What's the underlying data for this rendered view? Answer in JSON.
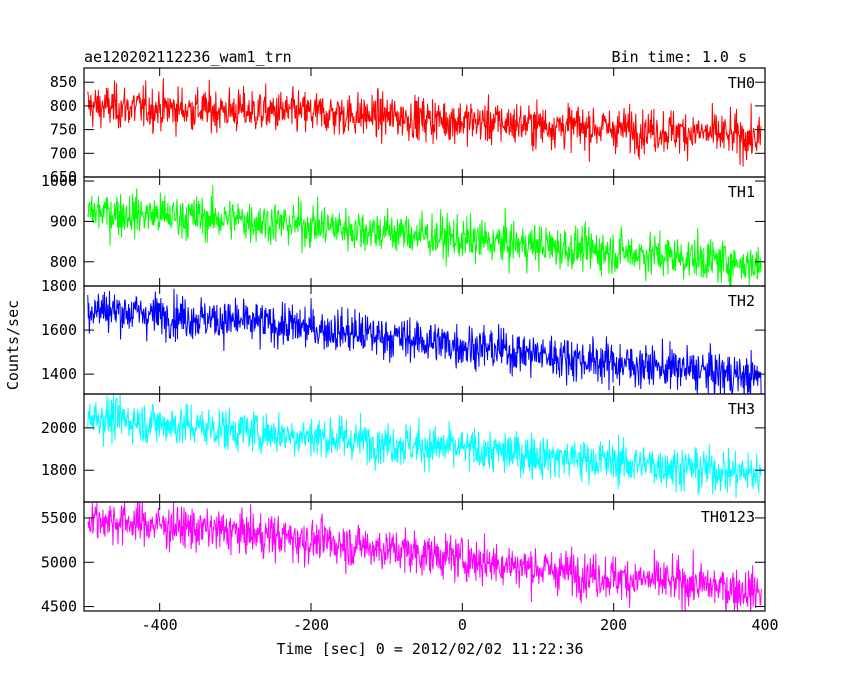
{
  "header": {
    "title": "ae120202112236_wam1_trn",
    "bin_time": "Bin time: 1.0 s"
  },
  "chart_data": {
    "type": "line",
    "title": "ae120202112236_wam1_trn",
    "subtitle": "Bin time: 1.0 s",
    "xlabel": "Time [sec] 0 = 2012/02/02 11:22:36",
    "ylabel": "Counts/sec",
    "xlim": [
      -500,
      400
    ],
    "x_ticks": [
      -400,
      -200,
      0,
      200,
      400
    ],
    "grid": false,
    "series": [
      {
        "name": "TH0",
        "color": "#ff0000",
        "ylim": [
          650,
          880
        ],
        "y_ticks": [
          650,
          700,
          750,
          800,
          850
        ],
        "x": [
          -500,
          -400,
          -300,
          -200,
          -100,
          0,
          100,
          200,
          300,
          400
        ],
        "values": [
          800,
          795,
          790,
          785,
          778,
          768,
          760,
          752,
          745,
          730
        ]
      },
      {
        "name": "TH1",
        "color": "#00ff00",
        "ylim": [
          740,
          1010
        ],
        "y_ticks": [
          800,
          900,
          1000
        ],
        "x": [
          -500,
          -400,
          -300,
          -200,
          -100,
          0,
          100,
          200,
          300,
          400
        ],
        "values": [
          925,
          915,
          905,
          890,
          875,
          855,
          840,
          825,
          810,
          790
        ]
      },
      {
        "name": "TH2",
        "color": "#0000ff",
        "ylim": [
          1310,
          1800
        ],
        "y_ticks": [
          1400,
          1600,
          1800
        ],
        "x": [
          -500,
          -400,
          -300,
          -200,
          -100,
          0,
          100,
          200,
          300,
          400
        ],
        "values": [
          1700,
          1670,
          1640,
          1610,
          1570,
          1530,
          1490,
          1450,
          1420,
          1380
        ]
      },
      {
        "name": "TH3",
        "color": "#00ffff",
        "ylim": [
          1650,
          2160
        ],
        "y_ticks": [
          1800,
          2000
        ],
        "x": [
          -500,
          -400,
          -300,
          -200,
          -100,
          0,
          100,
          200,
          300,
          400
        ],
        "values": [
          2060,
          2020,
          1990,
          1960,
          1930,
          1900,
          1870,
          1840,
          1810,
          1780
        ]
      },
      {
        "name": "TH0123",
        "color": "#ff00ff",
        "ylim": [
          4450,
          5680
        ],
        "y_ticks": [
          4500,
          5000,
          5500
        ],
        "x": [
          -500,
          -400,
          -300,
          -200,
          -100,
          0,
          100,
          200,
          300,
          400
        ],
        "values": [
          5500,
          5420,
          5340,
          5250,
          5150,
          5040,
          4930,
          4830,
          4760,
          4660
        ]
      }
    ]
  }
}
